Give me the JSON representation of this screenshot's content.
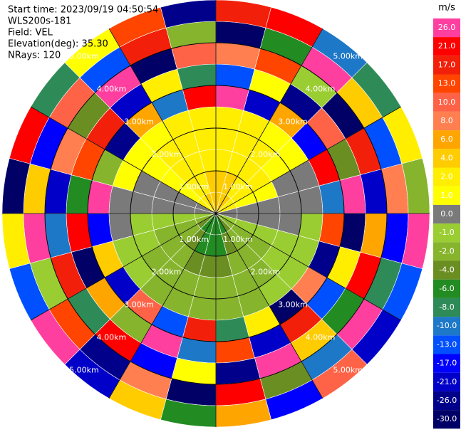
{
  "chart_data": {
    "type": "ppi",
    "annotations": [
      "Start time: 2023/09/19 04:50:54",
      "WLS200s-181",
      "Field: VEL",
      "Elevation(deg): 35.30",
      "NRays: 120"
    ],
    "range_labels": [
      "1.00km",
      "2.00km",
      "3.00km",
      "4.00km",
      "5.00km"
    ],
    "colorbar_label": "m/s",
    "colorbar_ticks": [
      {
        "value": 26,
        "label": "26.0"
      },
      {
        "value": 21,
        "label": "21.0"
      },
      {
        "value": 17,
        "label": "17.0"
      },
      {
        "value": 13,
        "label": "13.0"
      },
      {
        "value": 10,
        "label": "10.0"
      },
      {
        "value": 8,
        "label": "8.0"
      },
      {
        "value": 6,
        "label": "6.0"
      },
      {
        "value": 4,
        "label": "4.0"
      },
      {
        "value": 2,
        "label": "2.0"
      },
      {
        "value": 1,
        "label": "1.0"
      },
      {
        "value": 0,
        "label": "0.0"
      },
      {
        "value": -1,
        "label": "-1.0"
      },
      {
        "value": -2,
        "label": "-2.0"
      },
      {
        "value": -4,
        "label": "-4.0"
      },
      {
        "value": -6,
        "label": "-6.0"
      },
      {
        "value": -8,
        "label": "-8.0"
      },
      {
        "value": -10,
        "label": "-10.0"
      },
      {
        "value": -13,
        "label": "-13.0"
      },
      {
        "value": -17,
        "label": "-17.0"
      },
      {
        "value": -21,
        "label": "-21.0"
      },
      {
        "value": -26,
        "label": "-26.0"
      },
      {
        "value": -30,
        "label": "-30.0"
      }
    ],
    "colors": [
      "#ff3fa0",
      "#ff0000",
      "#f2200a",
      "#ff4500",
      "#ff6347",
      "#ff7f50",
      "#ffa500",
      "#ffcc00",
      "#ffee00",
      "#ffff00",
      "#7a7a7a",
      "#9acd32",
      "#86b42c",
      "#6b8e23",
      "#228b22",
      "#2e8b57",
      "#1e78c8",
      "#0050ff",
      "#0000ff",
      "#0000c8",
      "#00008b",
      "#000066"
    ],
    "velocities": [
      [
        4,
        4,
        2,
        2,
        2,
        26,
        -13,
        8,
        -30,
        17
      ],
      [
        4,
        4,
        2,
        2,
        2,
        -21,
        1,
        13,
        -6,
        21
      ],
      [
        4,
        2,
        2,
        2,
        1,
        6,
        -26,
        -1,
        26,
        -10
      ],
      [
        2,
        2,
        2,
        1,
        1,
        -17,
        10,
        -30,
        4,
        -8
      ],
      [
        2,
        1,
        1,
        0,
        0,
        21,
        -4,
        17,
        -13,
        2
      ],
      [
        0,
        0,
        0,
        0,
        0,
        -10,
        26,
        -21,
        8,
        -2
      ],
      [
        0,
        0,
        0,
        0,
        -1,
        13,
        -30,
        6,
        -17,
        26
      ],
      [
        -1,
        -1,
        -1,
        -1,
        -1,
        -26,
        2,
        21,
        -8,
        -13
      ],
      [
        -2,
        -2,
        -2,
        -1,
        -1,
        8,
        -13,
        -6,
        26,
        -21
      ],
      [
        -4,
        -2,
        -2,
        -2,
        -1,
        -30,
        17,
        4,
        -10,
        10
      ],
      [
        -6,
        -4,
        -2,
        -2,
        -2,
        2,
        -21,
        26,
        -4,
        -17
      ],
      [
        -6,
        -6,
        -4,
        -2,
        -2,
        -8,
        13,
        -26,
        21,
        6
      ],
      [
        -6,
        -6,
        -4,
        -2,
        -2,
        17,
        -10,
        1,
        -30,
        -6
      ],
      [
        -6,
        -6,
        -4,
        -2,
        -2,
        -13,
        26,
        -17,
        8,
        4
      ],
      [
        -6,
        -4,
        -2,
        -2,
        -2,
        10,
        -2,
        21,
        -26,
        -21
      ],
      [
        -4,
        -2,
        -2,
        -2,
        -1,
        -21,
        6,
        -8,
        13,
        26
      ],
      [
        -2,
        -2,
        -2,
        -1,
        -1,
        4,
        -30,
        17,
        -1,
        -13
      ],
      [
        -1,
        -1,
        -1,
        -1,
        0,
        -17,
        21,
        -10,
        26,
        2
      ],
      [
        0,
        0,
        0,
        0,
        0,
        26,
        -6,
        -21,
        4,
        -30
      ],
      [
        0,
        0,
        0,
        0,
        1,
        -2,
        13,
        8,
        -17,
        21
      ],
      [
        2,
        1,
        1,
        1,
        1,
        -26,
        17,
        -4,
        10,
        -8
      ],
      [
        2,
        2,
        2,
        2,
        1,
        6,
        -21,
        26,
        -13,
        1
      ],
      [
        4,
        2,
        2,
        2,
        2,
        -10,
        2,
        -30,
        17,
        13
      ],
      [
        4,
        4,
        2,
        2,
        2,
        21,
        -8,
        10,
        -2,
        -26
      ]
    ]
  }
}
